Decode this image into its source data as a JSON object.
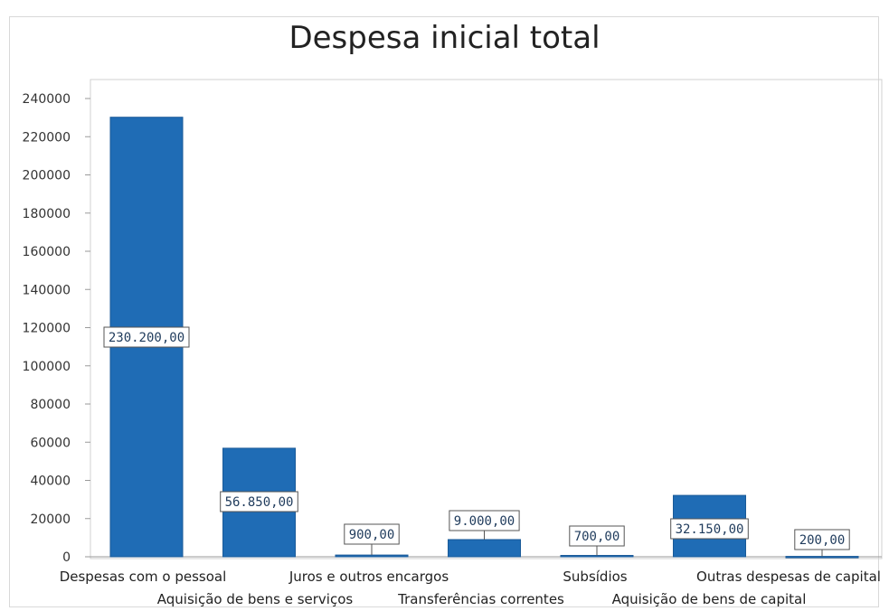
{
  "chart_data": {
    "type": "bar",
    "title": "Despesa inicial total",
    "xlabel": "",
    "ylabel": "",
    "ylim": [
      0,
      240000
    ],
    "y_ticks": [
      0,
      20000,
      40000,
      60000,
      80000,
      100000,
      120000,
      140000,
      160000,
      180000,
      200000,
      220000,
      240000
    ],
    "y_tick_labels": [
      "0",
      "20000",
      "40000",
      "60000",
      "80000",
      "100000",
      "120000",
      "140000",
      "160000",
      "180000",
      "200000",
      "220000",
      "240000"
    ],
    "categories": [
      "Despesas com o pessoal",
      "Aquisição de bens e serviços",
      "Juros e outros encargos",
      "Transferências correntes",
      "Subsídios",
      "Aquisição de bens de capital",
      "Outras despesas de capital"
    ],
    "values": [
      230200,
      56850,
      900,
      9000,
      700,
      32150,
      200
    ],
    "data_labels": [
      "230.200,00",
      "56.850,00",
      "900,00",
      "9.000,00",
      "700,00",
      "32.150,00",
      "200,00"
    ],
    "bar_color": "#1f6cb5",
    "grid": false,
    "legend": "none"
  }
}
